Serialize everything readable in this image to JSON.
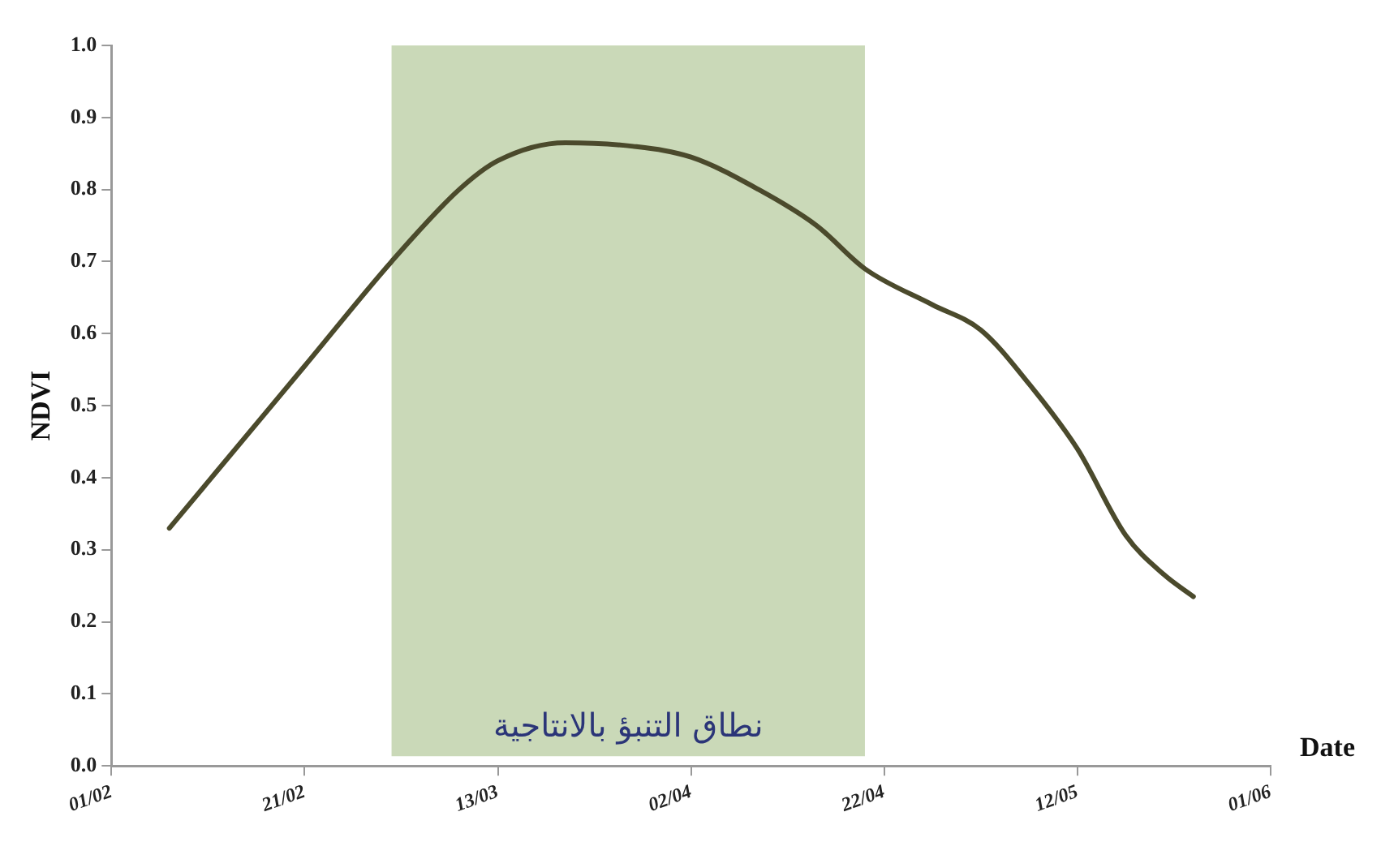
{
  "chart_data": {
    "type": "line",
    "xlabel": "Date",
    "ylabel": "NDVI",
    "x": [
      "--02-07",
      "--02-21",
      "--03-02",
      "--03-09",
      "--03-13",
      "--03-20",
      "--03-27",
      "--04-02",
      "--04-09",
      "--04-15",
      "--04-20",
      "--04-27",
      "--05-02",
      "--05-07",
      "--05-12",
      "--05-17",
      "--05-21",
      "--05-24"
    ],
    "series": [
      {
        "color": "#4b4a2c",
        "values": [
          0.33,
          0.555,
          0.7,
          0.8,
          0.84,
          0.865,
          0.86,
          0.845,
          0.8,
          0.75,
          0.69,
          0.64,
          0.605,
          0.53,
          0.44,
          0.32,
          0.265,
          0.235
        ]
      }
    ],
    "xlim": [
      "--02-01",
      "--06-01"
    ],
    "xticks": [
      {
        "value": "--02-01",
        "label": "01/02"
      },
      {
        "value": "--02-21",
        "label": "21/02"
      },
      {
        "value": "--03-13",
        "label": "13/03"
      },
      {
        "value": "--04-02",
        "label": "02/04"
      },
      {
        "value": "--04-22",
        "label": "22/04"
      },
      {
        "value": "--05-12",
        "label": "12/05"
      },
      {
        "value": "--06-01",
        "label": "01/06"
      }
    ],
    "ylim": [
      0,
      1
    ],
    "yticks": [
      {
        "value": 0,
        "label": "0.0"
      },
      0.1,
      0.2,
      0.3,
      0.4,
      0.5,
      0.6,
      0.7,
      0.8,
      0.9,
      {
        "value": 1,
        "label": "1.0"
      }
    ],
    "bands": [
      {
        "axis": "x",
        "from": "--03-02",
        "to": "--04-20",
        "label": "نطاق التنبؤ بالانتاجية",
        "color": "#cad9b8"
      }
    ],
    "grid": false,
    "legend": false,
    "marker": "none",
    "line_style": "solid"
  }
}
